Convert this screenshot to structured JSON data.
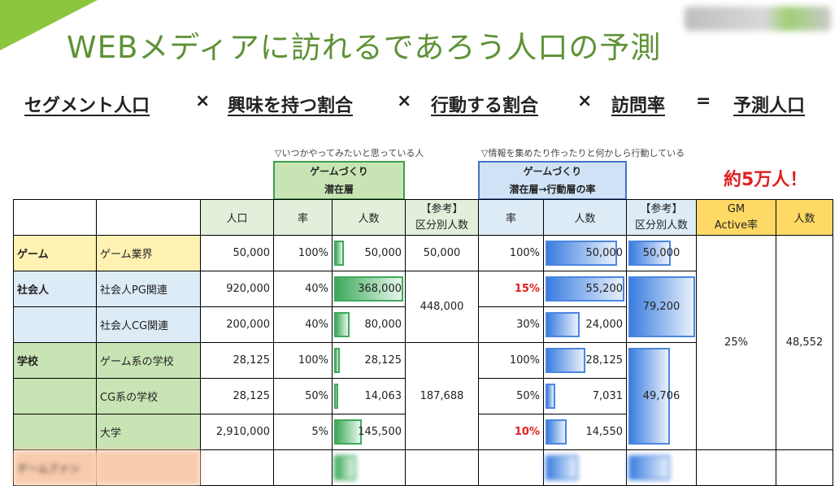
{
  "title": "WEBメディアに訪れるであろう人口の予測",
  "formula": {
    "t1": "セグメント人口",
    "op1": "×",
    "t2": "興味を持つ割合",
    "op2": "×",
    "t3": "行動する割合",
    "op3": "×",
    "t4": "訪問率",
    "op4": "=",
    "t5": "予測人口"
  },
  "notes": {
    "left": "▽いつかやってみたいと思っている人",
    "right": "▽情報を集めたり作ったりと何かしら行動している"
  },
  "group_headers": {
    "latent_l1": "ゲームづくり",
    "latent_l2": "潜在層",
    "active_l1": "ゲームづくり",
    "active_l2": "潜在層→行動層の率"
  },
  "headline": "約5万人！",
  "columns": {
    "population": "人口",
    "rate1": "率",
    "count1": "人数",
    "ref1_l1": "【参考】",
    "ref1_l2": "区分別人数",
    "rate2": "率",
    "count2": "人数",
    "ref2_l1": "【参考】",
    "ref2_l2": "区分別人数",
    "gm_l1": "GM",
    "gm_l2": "Active率",
    "final": "人数"
  },
  "rows": [
    {
      "cat": "ゲーム",
      "seg": "ゲーム業界",
      "pop": "50,000",
      "r1": "100%",
      "c1": "50,000",
      "c1v": 50000,
      "r2": "100%",
      "c2": "50,000",
      "c2v": 50000,
      "r2red": false
    },
    {
      "cat": "社会人",
      "seg": "社会人PG関連",
      "pop": "920,000",
      "r1": "40%",
      "c1": "368,000",
      "c1v": 368000,
      "r2": "15%",
      "c2": "55,200",
      "c2v": 55200,
      "r2red": true
    },
    {
      "cat": "",
      "seg": "社会人CG関連",
      "pop": "200,000",
      "r1": "40%",
      "c1": "80,000",
      "c1v": 80000,
      "r2": "30%",
      "c2": "24,000",
      "c2v": 24000,
      "r2red": false
    },
    {
      "cat": "学校",
      "seg": "ゲーム系の学校",
      "pop": "28,125",
      "r1": "100%",
      "c1": "28,125",
      "c1v": 28125,
      "r2": "100%",
      "c2": "28,125",
      "c2v": 28125,
      "r2red": false
    },
    {
      "cat": "",
      "seg": "CG系の学校",
      "pop": "28,125",
      "r1": "50%",
      "c1": "14,063",
      "c1v": 14063,
      "r2": "50%",
      "c2": "7,031",
      "c2v": 7031,
      "r2red": false
    },
    {
      "cat": "",
      "seg": "大学",
      "pop": "2,910,000",
      "r1": "5%",
      "c1": "145,500",
      "c1v": 145500,
      "r2": "10%",
      "c2": "14,550",
      "c2v": 14550,
      "r2red": true
    }
  ],
  "ref1": {
    "game": "50,000",
    "shakaijin": "448,000",
    "gakko": "187,688"
  },
  "ref2": [
    {
      "label": "50,000",
      "value": 50000
    },
    {
      "label": "79,200",
      "value": 79200
    },
    {
      "label": "49,706",
      "value": 49706
    }
  ],
  "gm_rate": "25%",
  "final_count": "48,552",
  "partial_row_label": "ゲームファン"
}
